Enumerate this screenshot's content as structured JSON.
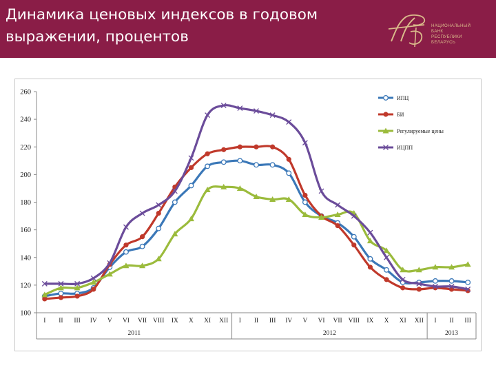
{
  "header": {
    "title_line1": "Динамика ценовых индексов в годовом",
    "title_line2": "выражении, процентов",
    "logo_text": [
      "НАЦИОНАЛЬНЫЙ",
      "БАНК",
      "РЕСПУБЛИКИ",
      "БЕЛАРУСЬ"
    ],
    "background_color": "#8a1d47"
  },
  "chart_data": {
    "type": "line",
    "title": "",
    "xlabel": "",
    "ylabel": "",
    "ylim": [
      100,
      260
    ],
    "yticks": [
      100,
      120,
      140,
      160,
      180,
      200,
      220,
      240,
      260
    ],
    "grid": false,
    "legend_position": "top-right",
    "categories": [
      "I",
      "II",
      "III",
      "IV",
      "V",
      "VI",
      "VII",
      "VIII",
      "IX",
      "X",
      "XI",
      "XII",
      "I",
      "II",
      "III",
      "IV",
      "V",
      "VI",
      "VII",
      "VIII",
      "IX",
      "X",
      "XI",
      "XII",
      "I",
      "II",
      "III"
    ],
    "year_groups": [
      {
        "label": "2011",
        "months": 12
      },
      {
        "label": "2012",
        "months": 12
      },
      {
        "label": "2013",
        "months": 3
      }
    ],
    "series": [
      {
        "name": "ИПЦ",
        "color": "#3b78b8",
        "marker": "circle",
        "values": [
          112,
          114,
          114,
          118,
          133,
          144,
          148,
          161,
          180,
          192,
          206,
          209,
          210,
          207,
          207,
          201,
          180,
          170,
          165,
          155,
          139,
          131,
          122,
          122,
          123,
          123,
          122
        ]
      },
      {
        "name": "БИ",
        "color": "#c0392b",
        "marker": "dot",
        "values": [
          110,
          111,
          112,
          117,
          135,
          149,
          155,
          172,
          191,
          205,
          215,
          218,
          220,
          220,
          220,
          211,
          185,
          170,
          163,
          149,
          133,
          124,
          118,
          117,
          118,
          117,
          116
        ]
      },
      {
        "name": "Регулируемые цены",
        "color": "#9bbb3c",
        "marker": "triangle",
        "values": [
          113,
          118,
          118,
          122,
          128,
          134,
          134,
          139,
          157,
          168,
          189,
          191,
          190,
          184,
          182,
          182,
          171,
          169,
          171,
          172,
          152,
          145,
          131,
          131,
          133,
          133,
          135
        ]
      },
      {
        "name": "ИЦПП",
        "color": "#6b4c9a",
        "marker": "x",
        "values": [
          121,
          121,
          121,
          125,
          136,
          162,
          172,
          178,
          188,
          212,
          243,
          250,
          248,
          246,
          243,
          238,
          223,
          188,
          178,
          170,
          158,
          140,
          124,
          121,
          119,
          119,
          117
        ]
      }
    ]
  }
}
